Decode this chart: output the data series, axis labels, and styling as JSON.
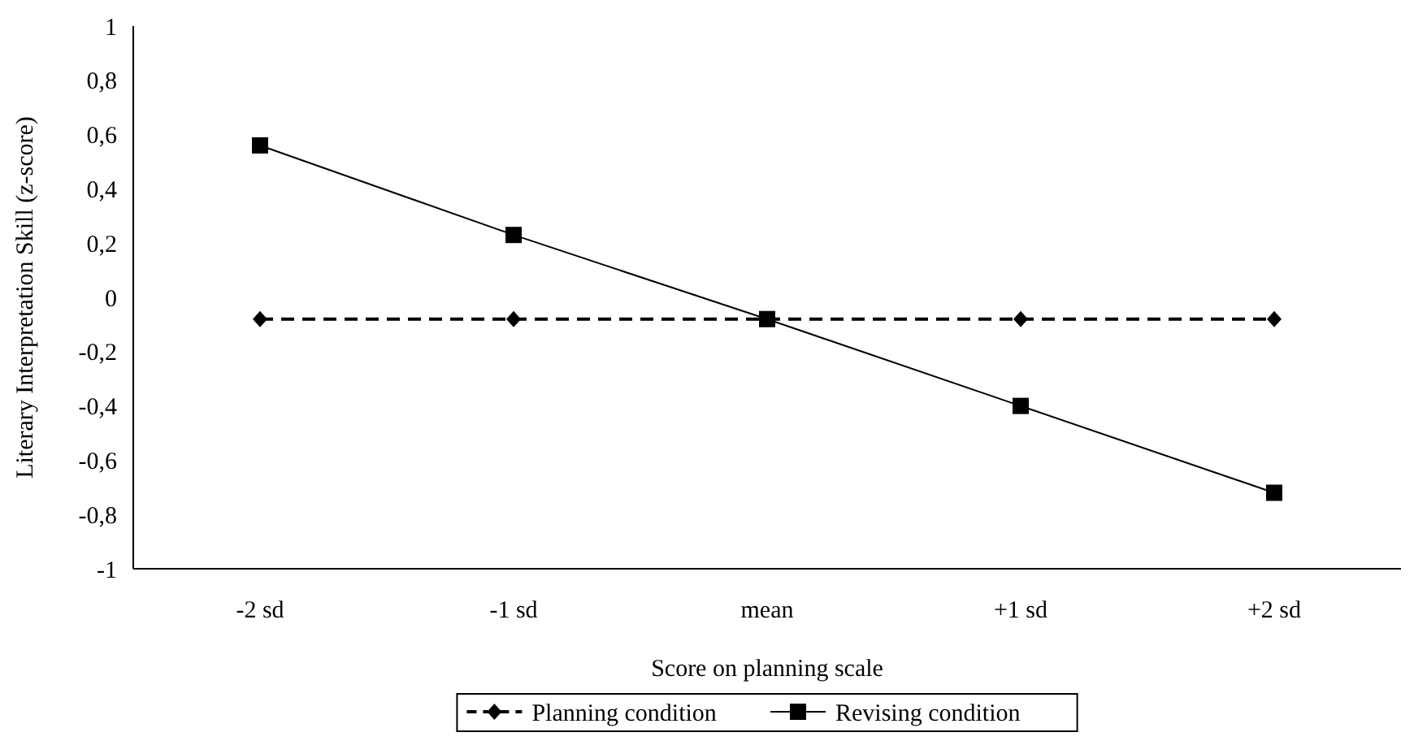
{
  "chart_data": {
    "type": "line",
    "xlabel": "Score on planning scale",
    "ylabel": "Literary Interpretation Skill (z-score)",
    "categories": [
      "-2 sd",
      "-1 sd",
      "mean",
      "+1 sd",
      "+2 sd"
    ],
    "series": [
      {
        "name": "Planning condition",
        "color": "#000000",
        "marker": "diamond",
        "line_style": "dashed",
        "values": [
          -0.08,
          -0.08,
          -0.08,
          -0.08,
          -0.08
        ]
      },
      {
        "name": "Revising condition",
        "color": "#000000",
        "marker": "square",
        "line_style": "solid",
        "values": [
          0.56,
          0.23,
          -0.08,
          -0.4,
          -0.72
        ]
      }
    ],
    "ylim": [
      -1,
      1
    ],
    "yticks": [
      -1,
      {
        "value": -0.8,
        "label": "-0,8"
      },
      {
        "value": -0.6,
        "label": "-0,6"
      },
      {
        "value": -0.4,
        "label": "-0,4"
      },
      {
        "value": -0.2,
        "label": "-0,2"
      },
      0,
      {
        "value": 0.2,
        "label": "0,2"
      },
      {
        "value": 0.4,
        "label": "0,4"
      },
      {
        "value": 0.6,
        "label": "0,6"
      },
      {
        "value": 0.8,
        "label": "0,8"
      },
      1
    ],
    "grid": false,
    "legend": "bottom"
  }
}
